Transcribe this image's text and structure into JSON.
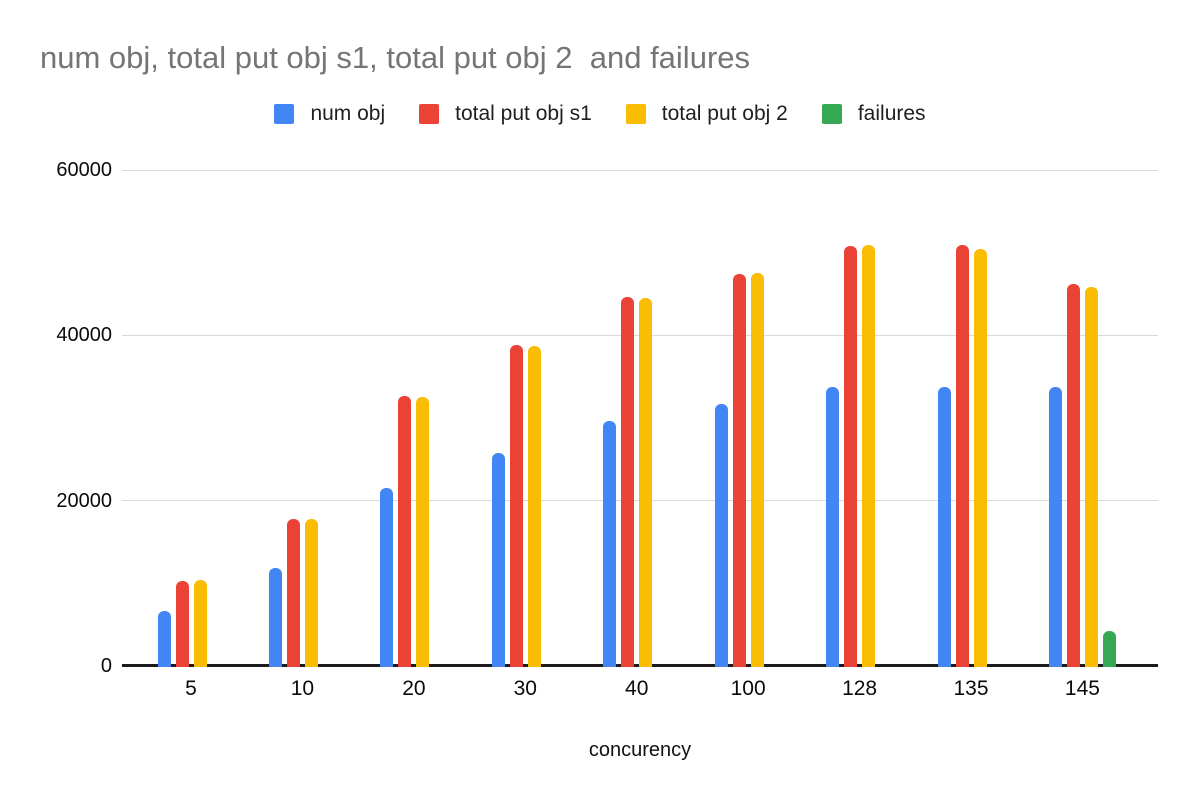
{
  "chart_data": {
    "type": "bar",
    "title": "num obj, total put obj s1, total put obj 2  and failures",
    "xlabel": "concurency",
    "ylabel": "",
    "categories": [
      "5",
      "10",
      "20",
      "30",
      "40",
      "100",
      "128",
      "135",
      "145"
    ],
    "series": [
      {
        "name": "num obj",
        "color": "#4285F4",
        "values": [
          6800,
          12000,
          21700,
          25900,
          29700,
          31800,
          33900,
          33900,
          33900
        ]
      },
      {
        "name": "total put obj s1",
        "color": "#EA4335",
        "values": [
          10400,
          17900,
          32800,
          38900,
          44700,
          47600,
          50900,
          51100,
          46300
        ]
      },
      {
        "name": "total put obj 2",
        "color": "#FBBC04",
        "values": [
          10500,
          17900,
          32700,
          38800,
          44600,
          47700,
          51000,
          50600,
          46000
        ]
      },
      {
        "name": "failures",
        "color": "#34A853",
        "values": [
          0,
          0,
          0,
          0,
          0,
          0,
          0,
          0,
          4300
        ]
      }
    ],
    "ylim": [
      0,
      60000
    ],
    "yticks": [
      0,
      20000,
      40000,
      60000
    ],
    "grid": true,
    "legend_position": "top"
  },
  "style": {
    "title_color": "#757575",
    "axis_label_color": "#0a0a0a",
    "gridline_color": "#d9d9d9",
    "axis_line_color": "#1b1b1b",
    "background": "#ffffff"
  }
}
